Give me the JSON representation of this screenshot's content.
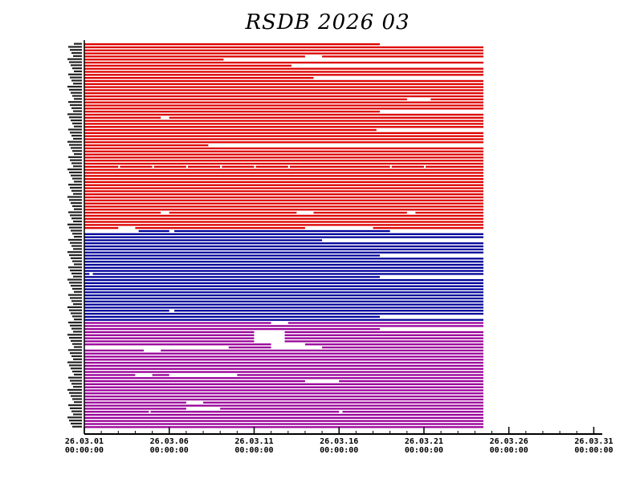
{
  "chart_data": {
    "type": "timeline",
    "title": "RSDB  2026  03",
    "x_ticks": [
      [
        "26.03.01",
        "00:00:00"
      ],
      [
        "26.03.06",
        "00:00:00"
      ],
      [
        "26.03.11",
        "00:00:00"
      ],
      [
        "26.03.16",
        "00:00:00"
      ],
      [
        "26.03.21",
        "00:00:00"
      ],
      [
        "26.03.26",
        "00:00:00"
      ],
      [
        "26.03.31",
        "00:00:00"
      ]
    ],
    "xlim_days": [
      1,
      31.5
    ],
    "data_end_day": 24.5,
    "groups": [
      {
        "color": "#dd0000",
        "rows": 61,
        "short_rows": [
          0
        ],
        "short_end_day": 18.4,
        "gaps": [
          [
            4,
            14,
            15
          ],
          [
            5,
            9.2,
            24.5
          ],
          [
            7,
            13.2,
            24.5
          ],
          [
            11,
            14.5,
            24.5
          ],
          [
            18,
            20,
            21.4
          ],
          [
            22,
            18.4,
            24.5
          ],
          [
            24,
            5.5,
            6.0
          ],
          [
            28,
            18.2,
            24.5
          ],
          [
            33,
            8.3,
            24.5
          ],
          [
            40,
            3.0,
            3.1
          ],
          [
            40,
            5.0,
            5.1
          ],
          [
            40,
            7.0,
            7.1
          ],
          [
            40,
            9.0,
            9.1
          ],
          [
            40,
            11.0,
            11.1
          ],
          [
            40,
            13.0,
            13.1
          ],
          [
            40,
            19.0,
            19.1
          ],
          [
            40,
            21.0,
            21.1
          ],
          [
            55,
            5.5,
            6.0
          ],
          [
            55,
            13.5,
            14.5
          ],
          [
            55,
            20.0,
            20.5
          ],
          [
            60,
            3.0,
            4.0
          ],
          [
            60,
            14.0,
            18.0
          ]
        ]
      },
      {
        "color": "#000099",
        "rows": 30,
        "short_rows": [
          15
        ],
        "short_end_day": 18.4,
        "gaps": [
          [
            0,
            1.0,
            4.2
          ],
          [
            0,
            6.0,
            6.3
          ],
          [
            0,
            19.0,
            24.5
          ],
          [
            3,
            15.0,
            24.5
          ],
          [
            8,
            18.4,
            24.5
          ],
          [
            14,
            1.3,
            1.5
          ],
          [
            26,
            6.0,
            6.3
          ],
          [
            28,
            18.4,
            24.5
          ]
        ]
      },
      {
        "color": "#990099",
        "rows": 35,
        "short_rows": [],
        "short_end_day": 24.5,
        "gaps": [
          [
            0,
            12.0,
            13.0
          ],
          [
            2,
            18.4,
            24.5
          ],
          [
            3,
            11.0,
            12.8
          ],
          [
            4,
            11.0,
            12.8
          ],
          [
            5,
            11.0,
            12.8
          ],
          [
            6,
            11.0,
            12.8
          ],
          [
            7,
            12.0,
            14.0
          ],
          [
            8,
            1.0,
            9.5
          ],
          [
            8,
            12.0,
            15.0
          ],
          [
            9,
            4.5,
            5.5
          ],
          [
            17,
            4.0,
            5.0
          ],
          [
            17,
            6.0,
            10.0
          ],
          [
            19,
            14.0,
            16.0
          ],
          [
            26,
            7.0,
            8.0
          ],
          [
            28,
            7.0,
            9.0
          ],
          [
            29,
            4.8,
            4.9
          ],
          [
            29,
            16.0,
            16.2
          ]
        ]
      }
    ]
  }
}
